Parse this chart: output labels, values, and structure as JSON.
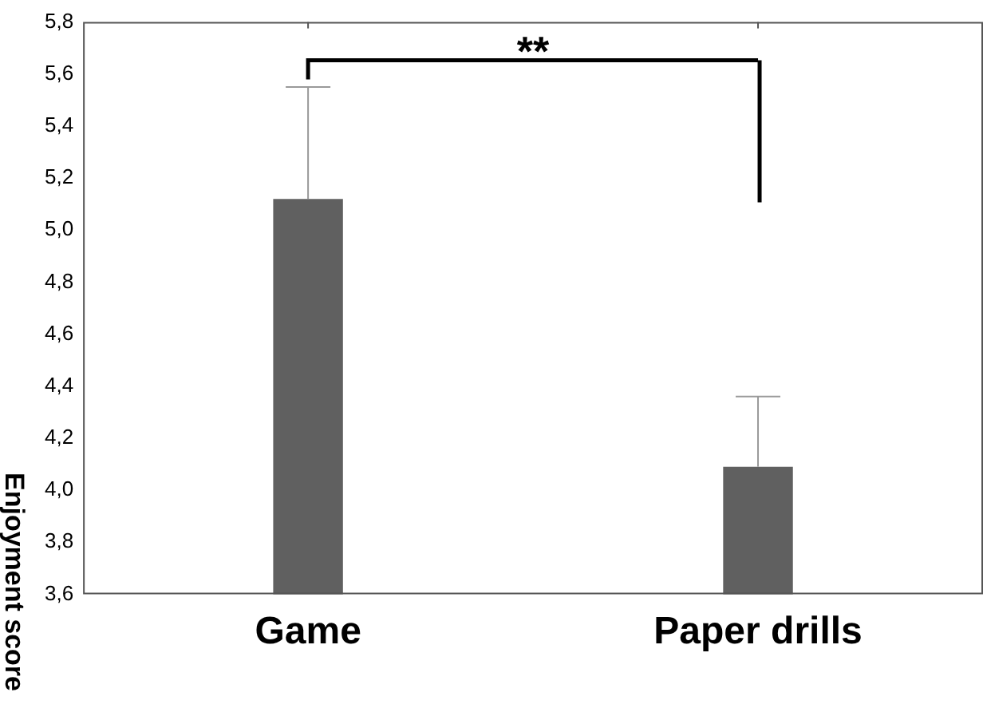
{
  "chart_data": {
    "type": "bar",
    "ylabel": "Enjoyment score",
    "categories": [
      "Game",
      "Paper drills"
    ],
    "values": [
      5.12,
      4.09
    ],
    "color": "#606060",
    "errors": [
      [
        5.12,
        5.55
      ],
      [
        4.09,
        4.36
      ]
    ],
    "ylim": [
      3.6,
      5.8
    ],
    "yticks": [
      {
        "value": 3.6,
        "label": "3,6"
      },
      {
        "value": 3.8,
        "label": "3,8"
      },
      {
        "value": 4.0,
        "label": "4,0"
      },
      {
        "value": 4.2,
        "label": "4,2"
      },
      {
        "value": 4.4,
        "label": "4,4"
      },
      {
        "value": 4.6,
        "label": "4,6"
      },
      {
        "value": 4.8,
        "label": "4,8"
      },
      {
        "value": 5.0,
        "label": "5,0"
      },
      {
        "value": 5.2,
        "label": "5,2"
      },
      {
        "value": 5.4,
        "label": "5,4"
      },
      {
        "value": 5.6,
        "label": "5,6"
      },
      {
        "value": 5.8,
        "label": "5,8"
      }
    ],
    "annotations": [
      "**"
    ],
    "grid": false,
    "legend": false
  }
}
